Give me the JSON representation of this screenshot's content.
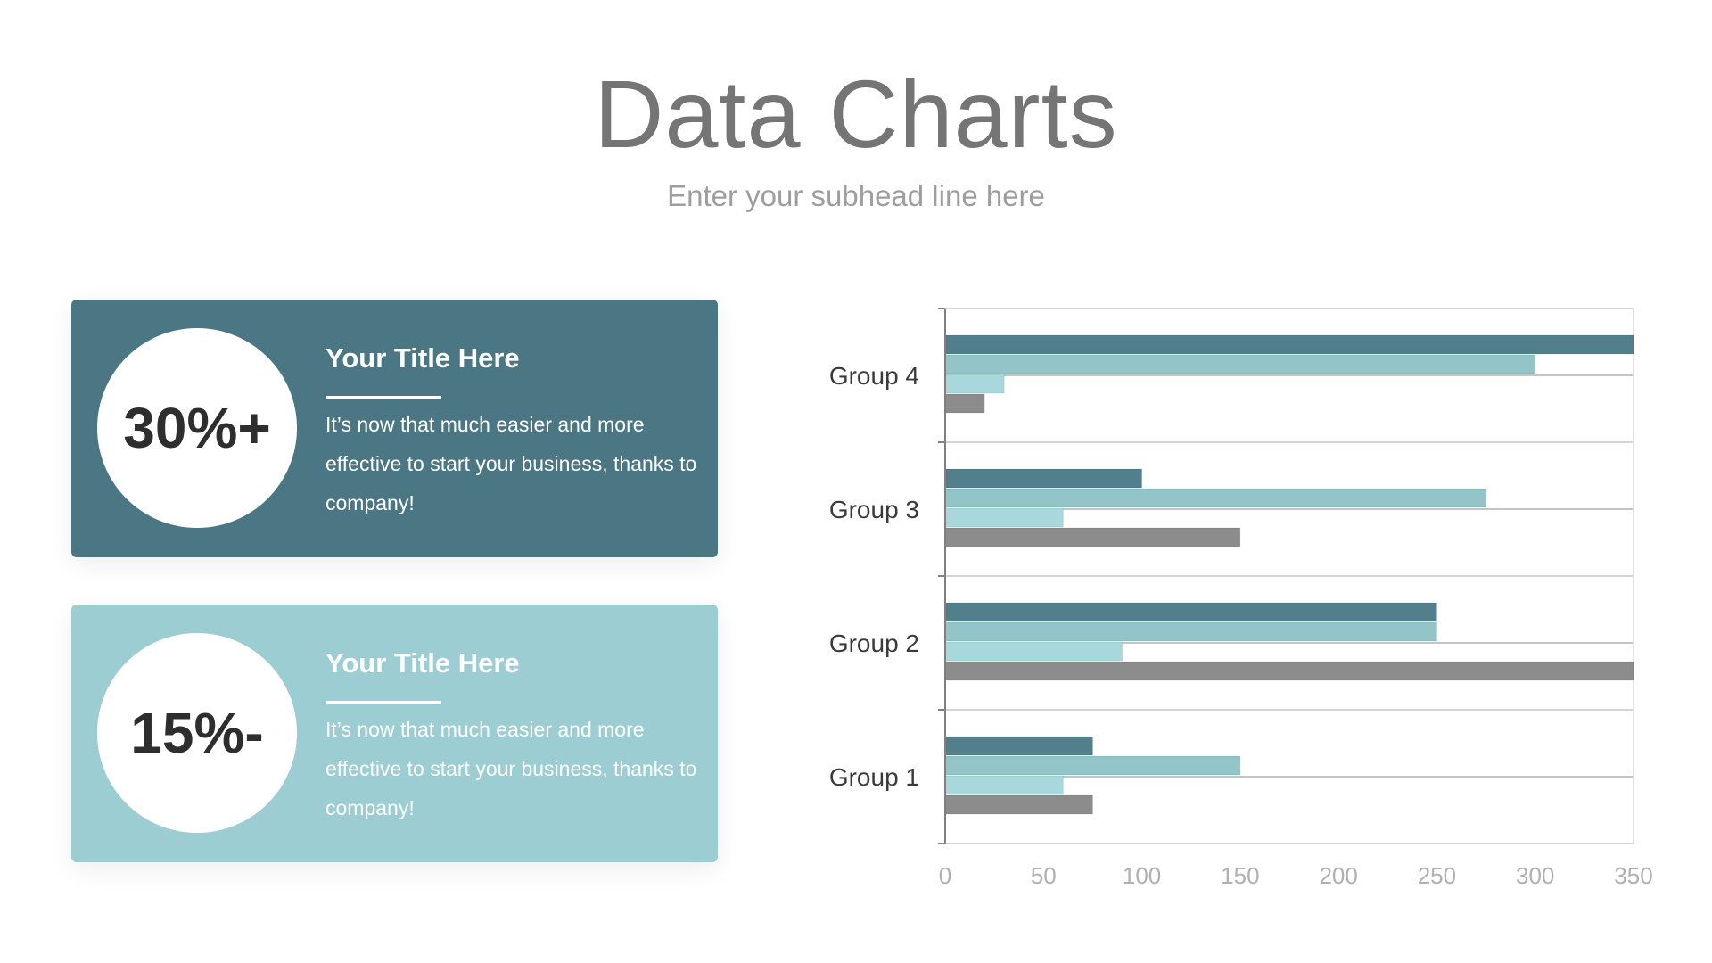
{
  "header": {
    "title": "Data Charts",
    "subtitle": "Enter your subhead line here"
  },
  "cards": [
    {
      "value": "30%+",
      "title": "Your Title Here",
      "text": "It’s now that much easier and more effective to start your business, thanks to company!",
      "color": "#4a7783"
    },
    {
      "value": "15%-",
      "title": "Your Title Here",
      "text": "It’s now that much easier and more effective to start your business, thanks to company!",
      "color": "#9ccdd2"
    }
  ],
  "chart_data": {
    "type": "bar",
    "orientation": "horizontal",
    "categories": [
      "Group 1",
      "Group 2",
      "Group 3",
      "Group 4"
    ],
    "series": [
      {
        "color": "#527f8c",
        "values": [
          75,
          250,
          100,
          350
        ]
      },
      {
        "color": "#93c4c8",
        "values": [
          150,
          250,
          275,
          300
        ]
      },
      {
        "color": "#a8d8dc",
        "values": [
          60,
          90,
          60,
          30
        ]
      },
      {
        "color": "#8c8c8c",
        "values": [
          75,
          350,
          150,
          20
        ]
      }
    ],
    "xlim": [
      0,
      350
    ],
    "xticks": [
      0,
      50,
      100,
      150,
      200,
      250,
      300,
      350
    ],
    "grid": true
  }
}
